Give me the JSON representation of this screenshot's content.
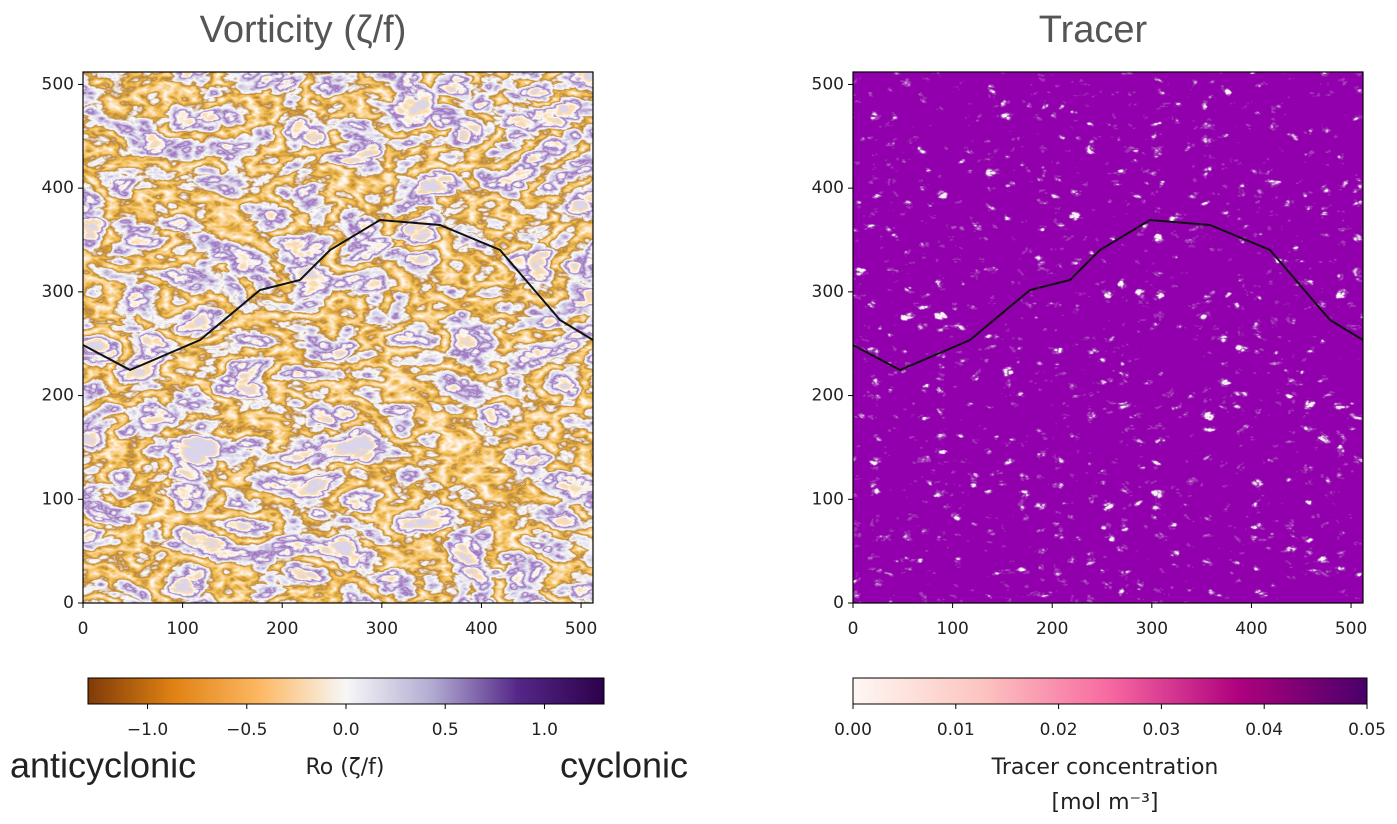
{
  "chart_data": [
    {
      "type": "heatmap",
      "title": "Vorticity (ζ/f)",
      "xlim": [
        0,
        512
      ],
      "xticks": [
        0,
        100,
        200,
        300,
        400,
        500
      ],
      "ylim": [
        0,
        512
      ],
      "yticks": [
        0,
        100,
        200,
        300,
        400,
        500
      ],
      "colorbar": {
        "label": "Ro (ζ/f)",
        "lim": [
          -1.3,
          1.3
        ],
        "ticks": [
          {
            "value": -1.0,
            "label": "−1.0"
          },
          {
            "value": -0.5,
            "label": "−0.5"
          },
          {
            "value": 0.0,
            "label": "0.0"
          },
          {
            "value": 0.5,
            "label": "0.5"
          },
          {
            "value": 1.0,
            "label": "1.0"
          }
        ],
        "colors": [
          "#7f3b08",
          "#e08214",
          "#fdb863",
          "#f7f7f7",
          "#b2abd2",
          "#542788",
          "#2d004b"
        ]
      },
      "annotations": [
        {
          "text": "anticyclonic",
          "color": "#b8731f"
        },
        {
          "text": "cyclonic",
          "color": "#6a4fa8"
        }
      ]
    },
    {
      "type": "heatmap",
      "title": "Tracer",
      "xlim": [
        0,
        512
      ],
      "xticks": [
        0,
        100,
        200,
        300,
        400,
        500
      ],
      "ylim": [
        0,
        512
      ],
      "yticks": [
        0,
        100,
        200,
        300,
        400,
        500
      ],
      "colorbar": {
        "label": "Tracer concentration",
        "unit": "[mol m⁻³]",
        "lim": [
          0,
          0.05
        ],
        "ticks": [
          {
            "value": 0,
            "label": "0.00"
          },
          {
            "value": 0.01,
            "label": "0.01"
          },
          {
            "value": 0.02,
            "label": "0.02"
          },
          {
            "value": 0.03,
            "label": "0.03"
          },
          {
            "value": 0.04,
            "label": "0.04"
          },
          {
            "value": 0.05,
            "label": "0.05"
          }
        ],
        "colors": [
          "#fff7f3",
          "#fcc5c0",
          "#f768a1",
          "#ae017e",
          "#49006a"
        ]
      }
    }
  ]
}
